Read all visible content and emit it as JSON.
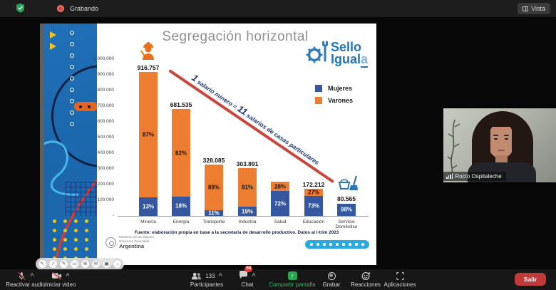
{
  "meeting": {
    "topbar": {
      "recording_label": "Grabando",
      "view_label": "Vista"
    },
    "toolbar": {
      "unmute_label": "Reactivar audio",
      "start_video_label": "Iniciar video",
      "participants_label": "Participantes",
      "participants_count": "133",
      "chat_label": "Chat",
      "chat_badge": "59",
      "share_label": "Compartir pantalla",
      "record_label": "Grabar",
      "reactions_label": "Reacciones",
      "apps_label": "Aplicaciones",
      "leave_label": "Salir"
    },
    "participant_video": {
      "name": "Rocío Ospitaleche"
    },
    "annotation_toolbar_icons": [
      {
        "name": "cursor-icon",
        "glyph": "↖"
      },
      {
        "name": "pen-icon",
        "glyph": "∕",
        "red": true
      },
      {
        "name": "pencil-icon",
        "glyph": "✎"
      },
      {
        "name": "eraser-icon",
        "glyph": "▭"
      },
      {
        "name": "zoom-icon",
        "glyph": "⊕"
      },
      {
        "name": "comment-icon",
        "glyph": "✉"
      },
      {
        "name": "camera-icon",
        "glyph": "▣"
      },
      {
        "name": "redo-icon",
        "glyph": "→"
      }
    ]
  },
  "slide": {
    "title": "Segregación horizontal",
    "logo_line1": "Sello",
    "logo_line2": "Igual",
    "logo_line2_last": "a",
    "annotation": {
      "n1": "1",
      "t1": " salario minero = ",
      "n2": "11",
      "t2": " salarios de casas particulares"
    },
    "fuente": "Fuente: elaboración propia en base a la secretaria de desarrollo productivo. Datos al I-trim 2023",
    "ministry_line1": "Ministerio de las Mujeres,",
    "ministry_line2": "Géneros y Diversidad",
    "ministry_country": "Argentina",
    "pagination_dots": 9
  },
  "chart_data": {
    "type": "bar",
    "stacked": true,
    "title": "Segregación horizontal",
    "categories": [
      "Minería",
      "Energía",
      "Transporte",
      "Industria",
      "Salud",
      "Educación",
      "Servicio Doméstico"
    ],
    "totals_label": [
      "916.757",
      "681.535",
      "328.085",
      "303.891",
      "",
      "172.212",
      "80.565"
    ],
    "totals_value": [
      916757,
      681535,
      328085,
      303891,
      218000,
      172212,
      80565
    ],
    "note": "Salud total no etiquetado en el gráfico; valor estimado de la altura de la barra",
    "series": [
      {
        "name": "Mujeres",
        "color": "#3457a0",
        "pct": [
          13,
          18,
          11,
          19,
          72,
          73,
          98
        ],
        "pct_labels": [
          "13%",
          "18%",
          "11%",
          "19%",
          "72%",
          "73%",
          "98%"
        ]
      },
      {
        "name": "Varones",
        "color": "#ed7d31",
        "pct": [
          87,
          82,
          89,
          81,
          28,
          27,
          2
        ],
        "pct_labels": [
          "87%",
          "82%",
          "89%",
          "81%",
          "28%",
          "27%",
          ""
        ]
      }
    ],
    "y_axis": {
      "min": 0,
      "max": 1000000,
      "ticks": [
        "1.000.000",
        "900.000",
        "800.000",
        "700.000",
        "600.000",
        "500.000",
        "400.000",
        "300.000",
        "200.000",
        "100.000",
        "-"
      ]
    },
    "legend_position": "right",
    "grid": false,
    "annotation_line": "1 salario minero = 11 salarios de casas particulares",
    "source": "Fuente: elaboración propia en base a la secretaria de desarrollo productivo. Datos al I-trim 2023"
  }
}
